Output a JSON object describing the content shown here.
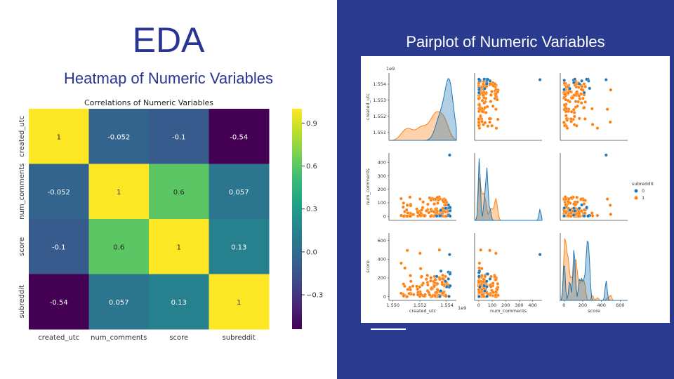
{
  "slide": {
    "title": "EDA",
    "left_subtitle": "Heatmap of Numeric Variables",
    "right_subtitle": "Pairplot of Numeric Variables"
  },
  "colors": {
    "accent": "#283593",
    "panel_bg": "#2a3a8e",
    "series_0": "#1f77b4",
    "series_1": "#ff7f0e"
  },
  "chart_data": [
    {
      "type": "heatmap",
      "title": "Correlations of Numeric Variables",
      "rows": [
        "created_utc",
        "num_comments",
        "score",
        "subreddit"
      ],
      "columns": [
        "created_utc",
        "num_comments",
        "score",
        "subreddit"
      ],
      "values": [
        [
          1,
          -0.052,
          -0.1,
          -0.54
        ],
        [
          -0.052,
          1,
          0.6,
          0.057
        ],
        [
          -0.1,
          0.6,
          1,
          0.13
        ],
        [
          -0.54,
          0.057,
          0.13,
          1
        ]
      ],
      "value_labels": [
        [
          "1",
          "-0.052",
          "-0.1",
          "-0.54"
        ],
        [
          "-0.052",
          "1",
          "0.6",
          "0.057"
        ],
        [
          "-0.1",
          "0.6",
          "1",
          "0.13"
        ],
        [
          "-0.54",
          "0.057",
          "0.13",
          "1"
        ]
      ],
      "colorscale": "viridis",
      "vlim": [
        -0.54,
        1
      ],
      "colorbar_ticks": [
        0.9,
        0.6,
        0.3,
        0.0,
        -0.3
      ],
      "colorbar_tick_labels": [
        "0.9",
        "0.6",
        "0.3",
        "0.0",
        "−0.3"
      ]
    },
    {
      "type": "scatter",
      "variables": [
        "created_utc",
        "num_comments",
        "score"
      ],
      "axis_ticks": {
        "created_utc": {
          "values": [
            1.55,
            1.552,
            1.554
          ],
          "labels": [
            "1.550",
            "1.552",
            "1.554"
          ],
          "offset_label": "1e9",
          "range": [
            1.5497,
            1.5547
          ]
        },
        "num_comments": {
          "values": [
            0,
            100,
            200,
            300,
            400
          ],
          "labels": [
            "0",
            "100",
            "200",
            "300",
            "400"
          ],
          "range": [
            -30,
            470
          ]
        },
        "score": {
          "values": [
            0,
            200,
            400,
            600
          ],
          "labels": [
            "0",
            "200",
            "400",
            "600"
          ],
          "range": [
            -40,
            680
          ]
        }
      },
      "diag_y_ticks": {
        "values": [
          1.551,
          1.552,
          1.553,
          1.554
        ],
        "labels": [
          "1.551",
          "1.552",
          "1.553",
          "1.554"
        ],
        "offset_label": "1e9"
      },
      "legend": {
        "title": "subreddit",
        "entries": [
          "0",
          "1"
        ],
        "placement": "right"
      },
      "diagonal": "kde"
    }
  ]
}
